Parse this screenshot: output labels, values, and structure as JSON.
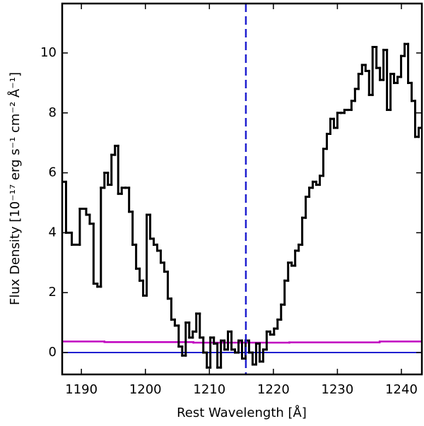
{
  "chart_data": {
    "type": "line",
    "drawstyle": "steps-mid",
    "xlabel": "Rest Wavelength [Å]",
    "ylabel": "Flux Density [10⁻¹⁷ erg s⁻¹ cm⁻² Å⁻¹]",
    "xlim": [
      1187.0,
      1243.2
    ],
    "ylim": [
      -0.73,
      11.65
    ],
    "xticks": [
      1190,
      1200,
      1210,
      1220,
      1230,
      1240
    ],
    "yticks": [
      0,
      2,
      4,
      6,
      8,
      10
    ],
    "vlines": [
      {
        "x": 1215.7,
        "color": "#1f1fd0",
        "dashed": true
      }
    ],
    "series": [
      {
        "color": "#000000",
        "width": 3,
        "x": [
          1187.2,
          1188,
          1189,
          1190.5,
          1191,
          1191.6,
          1192.2,
          1192.8,
          1193.3,
          1193.9,
          1194.4,
          1195,
          1195.5,
          1196,
          1196.6,
          1197.2,
          1197.7,
          1198.3,
          1198.8,
          1199.4,
          1199.9,
          1200.5,
          1201,
          1201.6,
          1202.1,
          1202.7,
          1203.2,
          1203.8,
          1204.3,
          1204.9,
          1205.5,
          1206,
          1206.6,
          1207.1,
          1207.7,
          1208.2,
          1208.8,
          1209.3,
          1209.9,
          1210.4,
          1211,
          1211.5,
          1212.1,
          1212.6,
          1213.2,
          1213.7,
          1214.3,
          1214.8,
          1215.4,
          1215.9,
          1216.5,
          1217,
          1217.6,
          1218.1,
          1218.7,
          1219.2,
          1219.8,
          1220.4,
          1220.9,
          1221.5,
          1222,
          1222.6,
          1223.1,
          1223.7,
          1224.2,
          1224.8,
          1225.3,
          1225.9,
          1226.4,
          1227,
          1227.5,
          1228.1,
          1228.6,
          1229.2,
          1229.7,
          1230.3,
          1230.8,
          1231.4,
          1231.9,
          1232.5,
          1233,
          1233.6,
          1234.1,
          1234.7,
          1235.2,
          1235.8,
          1236.4,
          1236.9,
          1237.5,
          1238,
          1238.6,
          1239.1,
          1239.7,
          1240.2,
          1240.8,
          1241.3,
          1241.9,
          1242.4,
          1243
        ],
        "values": [
          5.7,
          4.0,
          3.6,
          4.8,
          4.6,
          4.3,
          2.3,
          2.2,
          5.5,
          6.0,
          5.6,
          6.6,
          6.9,
          5.3,
          5.5,
          5.5,
          4.7,
          3.6,
          2.8,
          2.4,
          1.9,
          4.6,
          3.8,
          3.6,
          3.4,
          3.0,
          2.7,
          1.8,
          1.1,
          0.9,
          0.2,
          -0.1,
          1.0,
          0.5,
          0.7,
          1.3,
          0.5,
          0.0,
          -0.5,
          0.5,
          0.3,
          -0.5,
          0.4,
          0.1,
          0.7,
          0.1,
          0.0,
          0.4,
          -0.2,
          0.4,
          0.0,
          -0.4,
          0.3,
          -0.3,
          0.1,
          0.7,
          0.6,
          0.8,
          1.1,
          1.6,
          2.4,
          3.0,
          2.9,
          3.4,
          3.6,
          4.5,
          5.2,
          5.5,
          5.7,
          5.6,
          5.9,
          6.8,
          7.3,
          7.8,
          7.5,
          8.0,
          8.0,
          8.1,
          8.1,
          8.4,
          8.8,
          9.3,
          9.6,
          9.4,
          8.6,
          10.2,
          9.5,
          9.1,
          10.1,
          8.1,
          9.3,
          9.0,
          9.2,
          9.9,
          10.3,
          9.0,
          8.4,
          7.2,
          7.5
        ]
      },
      {
        "color": "#c000c0",
        "width": 2.5,
        "x": [
          1187.2,
          1200,
          1215,
          1230,
          1243.2
        ],
        "values": [
          0.37,
          0.35,
          0.33,
          0.34,
          0.37
        ]
      },
      {
        "color": "#1f1fd0",
        "width": 2,
        "x": [
          1187.2,
          1243.2
        ],
        "values": [
          0,
          0
        ]
      }
    ]
  }
}
